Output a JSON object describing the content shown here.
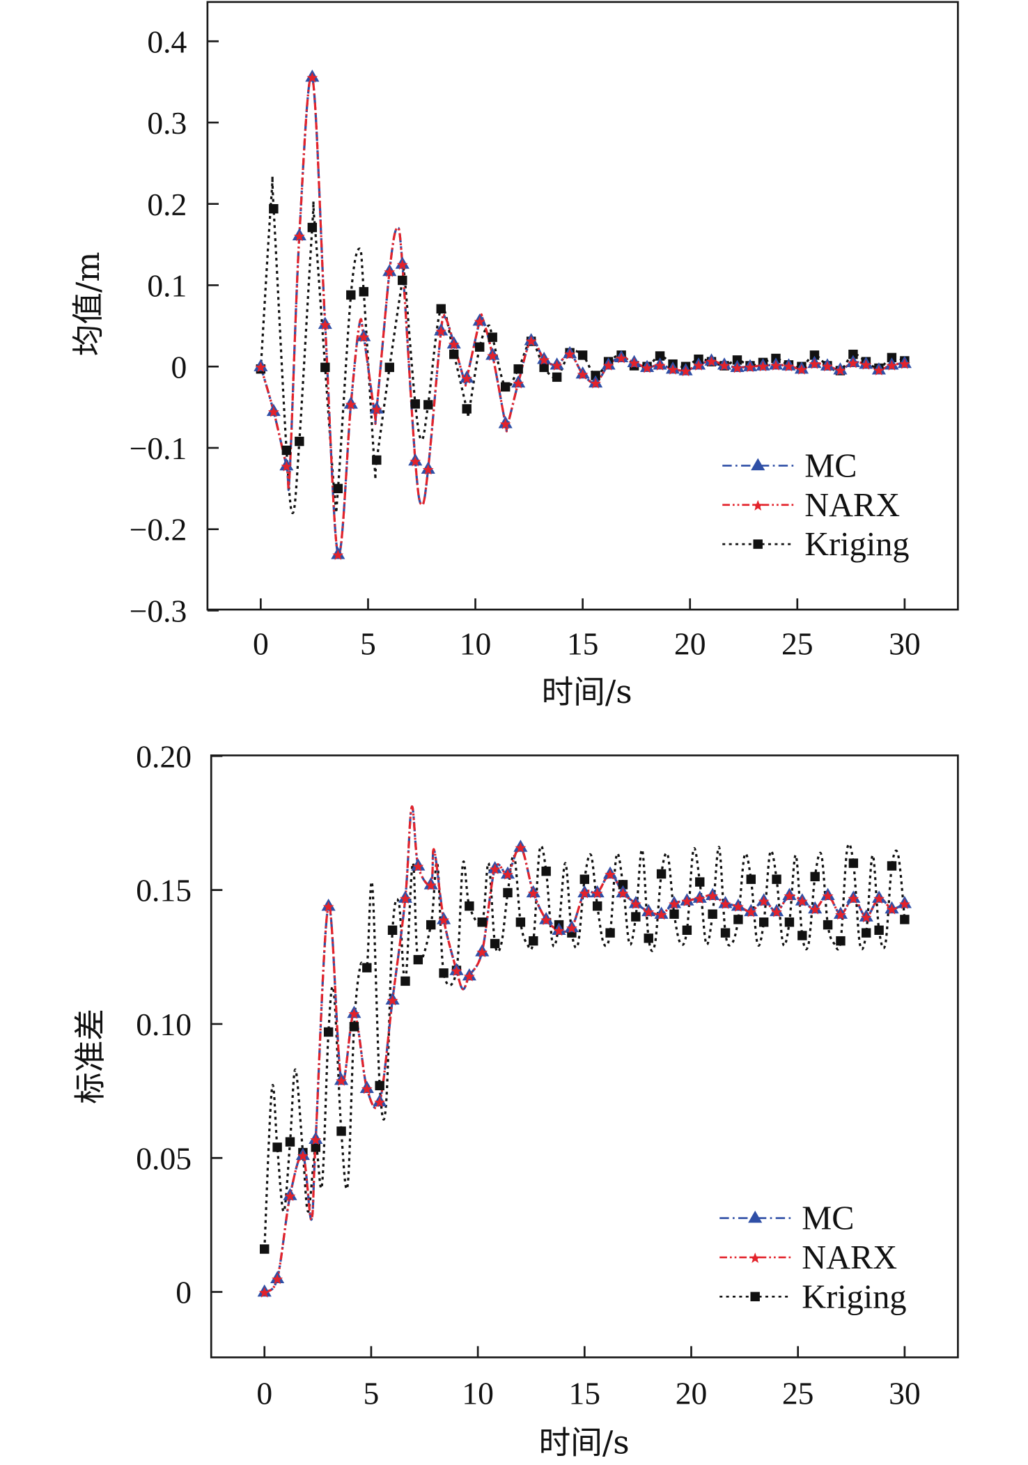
{
  "colors": {
    "mc": "#2f4fa6",
    "narx": "#e3232b",
    "kriging": "#111111",
    "axis": "#1a1a1a"
  },
  "chart_data": [
    {
      "type": "line",
      "title": "",
      "xlabel": "时间/s",
      "ylabel": "均值/m",
      "xlim": [
        -2.5,
        32.5
      ],
      "ylim": [
        -0.3,
        0.45
      ],
      "xticks": [
        0,
        5,
        10,
        15,
        20,
        25,
        30
      ],
      "xtick_labels": [
        "0",
        "5",
        "10",
        "15",
        "20",
        "25",
        "30"
      ],
      "yticks": [
        0.4,
        0.3,
        0.2,
        0.1,
        0,
        -0.1,
        -0.2,
        -0.3
      ],
      "ytick_labels": [
        "0.4",
        "0.3",
        "0.2",
        "0.1",
        "0",
        "−0.1",
        "−0.2",
        "−0.3"
      ],
      "legend": {
        "placement": "lower-right",
        "entries": [
          "MC",
          "NARX",
          "Kriging"
        ]
      },
      "x": [
        0,
        0.6,
        1.2,
        1.8,
        2.4,
        3.0,
        3.6,
        4.2,
        4.8,
        5.4,
        6.0,
        6.6,
        7.2,
        7.8,
        8.4,
        9.0,
        9.6,
        10.2,
        10.8,
        11.4,
        12.0,
        12.6,
        13.2,
        13.8,
        14.4,
        15.0,
        15.6,
        16.2,
        16.8,
        17.4,
        18.0,
        18.6,
        19.2,
        19.8,
        20.4,
        21.0,
        21.6,
        22.2,
        22.8,
        23.4,
        24.0,
        24.6,
        25.2,
        25.8,
        26.4,
        27.0,
        27.6,
        28.2,
        28.8,
        29.4,
        30.0
      ],
      "series": [
        {
          "name": "MC",
          "key": "mc",
          "marker": "triangle",
          "values": [
            0,
            -0.055,
            -0.122,
            0.161,
            0.356,
            0.052,
            -0.231,
            -0.046,
            0.037,
            -0.052,
            0.117,
            0.126,
            -0.116,
            -0.126,
            0.044,
            0.028,
            -0.014,
            0.056,
            0.014,
            -0.07,
            -0.02,
            0.032,
            0.009,
            0.002,
            0.016,
            -0.009,
            -0.02,
            0.002,
            0.011,
            0.005,
            -0.001,
            0.002,
            -0.003,
            -0.005,
            0.002,
            0.007,
            0.002,
            -0.001,
            0,
            0.001,
            0.002,
            0.001,
            -0.003,
            0.004,
            0.001,
            -0.004,
            0.005,
            0.003,
            -0.004,
            0.002,
            0.004
          ],
          "line_extra": [
            [
              1.35,
              -0.13
            ],
            [
              2.45,
              0.36
            ],
            [
              4.6,
              0.052
            ],
            [
              5.3,
              -0.056
            ],
            [
              6.35,
              0.17
            ],
            [
              7.5,
              -0.17
            ],
            [
              8.6,
              0.06
            ],
            [
              9.5,
              -0.018
            ],
            [
              10.35,
              0.058
            ],
            [
              11.5,
              -0.072
            ]
          ]
        },
        {
          "name": "NARX",
          "key": "narx",
          "marker": "star",
          "values": [
            0,
            -0.055,
            -0.122,
            0.161,
            0.356,
            0.052,
            -0.231,
            -0.046,
            0.037,
            -0.052,
            0.117,
            0.126,
            -0.116,
            -0.126,
            0.044,
            0.028,
            -0.014,
            0.056,
            0.014,
            -0.07,
            -0.02,
            0.032,
            0.009,
            0.002,
            0.016,
            -0.009,
            -0.02,
            0.002,
            0.011,
            0.005,
            -0.001,
            0.002,
            -0.003,
            -0.005,
            0.002,
            0.007,
            0.002,
            -0.001,
            0,
            0.001,
            0.002,
            0.001,
            -0.003,
            0.004,
            0.001,
            -0.004,
            0.005,
            0.003,
            -0.004,
            0.002,
            0.004
          ],
          "line_extra": [
            [
              1.35,
              -0.13
            ],
            [
              2.45,
              0.36
            ],
            [
              4.6,
              0.052
            ],
            [
              5.3,
              -0.056
            ],
            [
              6.35,
              0.17
            ],
            [
              7.5,
              -0.17
            ],
            [
              8.6,
              0.06
            ],
            [
              9.5,
              -0.018
            ],
            [
              10.35,
              0.058
            ],
            [
              11.5,
              -0.072
            ]
          ]
        },
        {
          "name": "Kriging",
          "key": "kriging",
          "marker": "square",
          "values": [
            -0.003,
            0.194,
            -0.103,
            -0.092,
            0.171,
            -0.001,
            -0.15,
            0.088,
            0.092,
            -0.115,
            -0.001,
            0.106,
            -0.046,
            -0.047,
            0.071,
            0.015,
            -0.052,
            0.024,
            0.036,
            -0.025,
            -0.003,
            0.031,
            -0.001,
            -0.013,
            0.017,
            0.014,
            -0.011,
            0.006,
            0.014,
            0.001,
            0,
            0.013,
            0.003,
            0,
            0.009,
            0.006,
            0.001,
            0.008,
            0.001,
            0.005,
            0.01,
            0.002,
            0,
            0.014,
            0.001,
            -0.005,
            0.015,
            0.006,
            -0.002,
            0.011,
            0.007
          ],
          "line_extra": [
            [
              0.5,
              0.21
            ],
            [
              1.5,
              -0.18
            ],
            [
              2.5,
              0.18
            ],
            [
              3.45,
              -0.16
            ],
            [
              4.6,
              0.145
            ],
            [
              5.3,
              -0.12
            ],
            [
              6.7,
              0.11
            ],
            [
              7.5,
              -0.09
            ],
            [
              9.7,
              -0.055
            ],
            [
              10.6,
              0.05
            ]
          ]
        }
      ]
    },
    {
      "type": "line",
      "title": "",
      "xlabel": "时间/s",
      "ylabel": "标准差",
      "xlim": [
        -2.5,
        32.5
      ],
      "ylim": [
        -0.025,
        0.2
      ],
      "xticks": [
        0,
        5,
        10,
        15,
        20,
        25,
        30
      ],
      "xtick_labels": [
        "0",
        "5",
        "10",
        "15",
        "20",
        "25",
        "30"
      ],
      "yticks": [
        0.2,
        0.15,
        0.1,
        0.05,
        0
      ],
      "ytick_labels": [
        "0.20",
        "0.15",
        "0.10",
        "0.05",
        "0"
      ],
      "legend": {
        "placement": "lower-right",
        "entries": [
          "MC",
          "NARX",
          "Kriging"
        ]
      },
      "x": [
        0,
        0.6,
        1.2,
        1.8,
        2.4,
        3.0,
        3.6,
        4.2,
        4.8,
        5.4,
        6.0,
        6.6,
        7.2,
        7.8,
        8.4,
        9.0,
        9.6,
        10.2,
        10.8,
        11.4,
        12.0,
        12.6,
        13.2,
        13.8,
        14.4,
        15.0,
        15.6,
        16.2,
        16.8,
        17.4,
        18.0,
        18.6,
        19.2,
        19.8,
        20.4,
        21.0,
        21.6,
        22.2,
        22.8,
        23.4,
        24.0,
        24.6,
        25.2,
        25.8,
        26.4,
        27.0,
        27.6,
        28.2,
        28.8,
        29.4,
        30.0
      ],
      "series": [
        {
          "name": "MC",
          "key": "mc",
          "marker": "triangle",
          "values": [
            0,
            0.005,
            0.036,
            0.051,
            0.057,
            0.144,
            0.079,
            0.104,
            0.076,
            0.071,
            0.109,
            0.147,
            0.159,
            0.152,
            0.139,
            0.12,
            0.118,
            0.127,
            0.158,
            0.156,
            0.166,
            0.149,
            0.139,
            0.135,
            0.136,
            0.149,
            0.149,
            0.156,
            0.149,
            0.145,
            0.142,
            0.141,
            0.145,
            0.146,
            0.147,
            0.148,
            0.145,
            0.144,
            0.142,
            0.146,
            0.142,
            0.148,
            0.146,
            0.143,
            0.148,
            0.141,
            0.147,
            0.14,
            0.147,
            0.143,
            0.145
          ],
          "line_extra": [
            [
              2.2,
              0.027
            ],
            [
              4.75,
              0.062
            ],
            [
              6.9,
              0.181
            ],
            [
              7.95,
              0.165
            ],
            [
              9.3,
              0.113
            ]
          ]
        },
        {
          "name": "NARX",
          "key": "narx",
          "marker": "star",
          "values": [
            0,
            0.005,
            0.036,
            0.051,
            0.057,
            0.144,
            0.079,
            0.104,
            0.076,
            0.071,
            0.109,
            0.147,
            0.159,
            0.152,
            0.139,
            0.12,
            0.118,
            0.127,
            0.158,
            0.156,
            0.166,
            0.149,
            0.139,
            0.135,
            0.136,
            0.149,
            0.149,
            0.156,
            0.149,
            0.145,
            0.142,
            0.141,
            0.145,
            0.146,
            0.147,
            0.148,
            0.145,
            0.144,
            0.142,
            0.146,
            0.142,
            0.148,
            0.146,
            0.143,
            0.148,
            0.141,
            0.147,
            0.14,
            0.147,
            0.143,
            0.145
          ],
          "line_extra": [
            [
              2.2,
              0.027
            ],
            [
              4.75,
              0.062
            ],
            [
              6.9,
              0.181
            ],
            [
              7.95,
              0.165
            ],
            [
              9.3,
              0.113
            ]
          ]
        },
        {
          "name": "Kriging",
          "key": "kriging",
          "marker": "square",
          "values": [
            0.016,
            0.054,
            0.056,
            0.052,
            0.054,
            0.097,
            0.06,
            0.099,
            0.121,
            0.077,
            0.135,
            0.116,
            0.124,
            0.137,
            0.119,
            0.12,
            0.144,
            0.138,
            0.13,
            0.149,
            0.138,
            0.131,
            0.157,
            0.137,
            0.134,
            0.154,
            0.144,
            0.134,
            0.152,
            0.14,
            0.132,
            0.156,
            0.141,
            0.135,
            0.153,
            0.141,
            0.134,
            0.139,
            0.154,
            0.138,
            0.154,
            0.138,
            0.133,
            0.155,
            0.137,
            0.131,
            0.16,
            0.134,
            0.135,
            0.159,
            0.139
          ],
          "line_extra": [
            [
              0.35,
              0.076
            ],
            [
              0.9,
              0.03
            ],
            [
              1.45,
              0.083
            ],
            [
              2.05,
              0.03
            ],
            [
              2.7,
              0.04
            ],
            [
              3.25,
              0.112
            ],
            [
              3.9,
              0.04
            ],
            [
              4.5,
              0.122
            ],
            [
              5.05,
              0.152
            ],
            [
              5.7,
              0.07
            ],
            [
              6.3,
              0.145
            ],
            [
              6.95,
              0.16
            ],
            [
              8.1,
              0.16
            ],
            [
              9.3,
              0.16
            ],
            [
              10.5,
              0.16
            ],
            [
              11.1,
              0.13
            ],
            [
              11.7,
              0.163
            ],
            [
              12.3,
              0.13
            ],
            [
              12.9,
              0.165
            ],
            [
              13.5,
              0.13
            ],
            [
              14.1,
              0.16
            ],
            [
              14.7,
              0.13
            ],
            [
              15.3,
              0.163
            ],
            [
              15.9,
              0.13
            ],
            [
              16.5,
              0.163
            ],
            [
              17.1,
              0.13
            ],
            [
              17.7,
              0.165
            ],
            [
              18.3,
              0.13
            ],
            [
              18.9,
              0.163
            ],
            [
              19.5,
              0.13
            ],
            [
              20.1,
              0.165
            ],
            [
              20.7,
              0.13
            ],
            [
              21.3,
              0.166
            ],
            [
              21.9,
              0.13
            ],
            [
              22.5,
              0.163
            ],
            [
              23.1,
              0.13
            ],
            [
              23.7,
              0.164
            ],
            [
              24.3,
              0.13
            ],
            [
              24.9,
              0.163
            ],
            [
              25.5,
              0.13
            ],
            [
              26.1,
              0.163
            ],
            [
              26.7,
              0.13
            ],
            [
              27.3,
              0.165
            ],
            [
              27.9,
              0.13
            ],
            [
              28.5,
              0.163
            ],
            [
              29.1,
              0.13
            ],
            [
              29.7,
              0.163
            ]
          ]
        }
      ]
    }
  ]
}
